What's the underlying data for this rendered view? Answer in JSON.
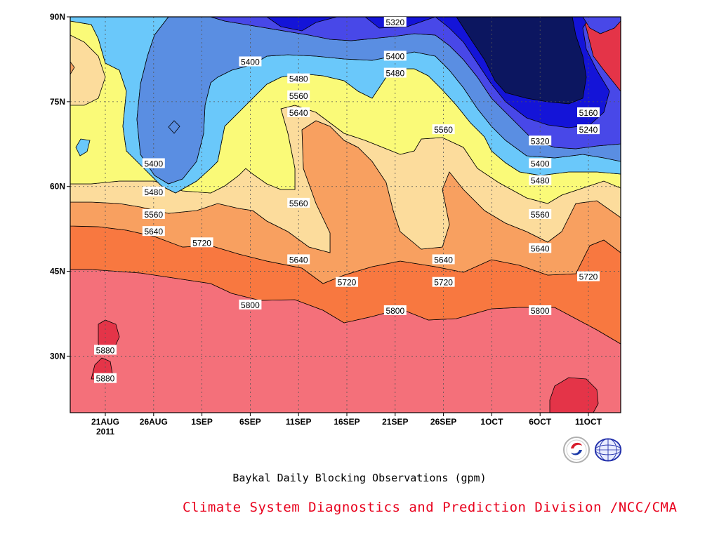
{
  "chart_data": {
    "type": "contour",
    "title": "Baykal Daily Blocking Observations (gpm)",
    "x_ticks": [
      "21AUG",
      "26AUG",
      "1SEP",
      "6SEP",
      "11SEP",
      "16SEP",
      "21SEP",
      "26SEP",
      "1OCT",
      "6OCT",
      "11OCT"
    ],
    "x_year": "2011",
    "y_ticks": [
      "30N",
      "45N",
      "60N",
      "75N",
      "90N"
    ],
    "y_tick_values": [
      30,
      45,
      60,
      75,
      90
    ],
    "ylim": [
      20,
      90
    ],
    "grid": true,
    "levels": [
      5160,
      5240,
      5320,
      5400,
      5480,
      5560,
      5640,
      5720,
      5800,
      5880
    ],
    "fill_colors": {
      "5160": "#0c1660",
      "5240": "#1414d8",
      "5320": "#4848e8",
      "5400": "#5a8ee2",
      "5480": "#6ac8fa",
      "5560": "#fafa78",
      "5640": "#fcdc9c",
      "5720": "#f8a060",
      "5800": "#f87840",
      "5880": "#f4707a",
      "above": "#e43448"
    },
    "contour_labels": [
      {
        "value": "5320",
        "date": "21SEP",
        "lat": 89
      },
      {
        "value": "5400",
        "date": "6SEP",
        "lat": 82
      },
      {
        "value": "5400",
        "date": "21SEP",
        "lat": 83
      },
      {
        "value": "5480",
        "date": "11SEP",
        "lat": 79
      },
      {
        "value": "5480",
        "date": "21SEP",
        "lat": 80
      },
      {
        "value": "5560",
        "date": "11SEP",
        "lat": 76
      },
      {
        "value": "5640",
        "date": "11SEP",
        "lat": 73
      },
      {
        "value": "5560",
        "date": "26SEP",
        "lat": 70
      },
      {
        "value": "5160",
        "date": "11OCT",
        "lat": 73
      },
      {
        "value": "5240",
        "date": "11OCT",
        "lat": 70
      },
      {
        "value": "5320",
        "date": "6OCT",
        "lat": 68
      },
      {
        "value": "5400",
        "date": "26AUG",
        "lat": 64
      },
      {
        "value": "5400",
        "date": "6OCT",
        "lat": 64
      },
      {
        "value": "5480",
        "date": "26AUG",
        "lat": 59
      },
      {
        "value": "5480",
        "date": "6OCT",
        "lat": 61
      },
      {
        "value": "5560",
        "date": "11SEP",
        "lat": 57
      },
      {
        "value": "5560",
        "date": "26AUG",
        "lat": 55
      },
      {
        "value": "5560",
        "date": "6OCT",
        "lat": 55
      },
      {
        "value": "5640",
        "date": "26AUG",
        "lat": 52
      },
      {
        "value": "5640",
        "date": "6OCT",
        "lat": 49
      },
      {
        "value": "5720",
        "date": "1SEP",
        "lat": 50
      },
      {
        "value": "5640",
        "date": "11SEP",
        "lat": 47
      },
      {
        "value": "5640",
        "date": "26SEP",
        "lat": 47
      },
      {
        "value": "5720",
        "date": "16SEP",
        "lat": 43
      },
      {
        "value": "5720",
        "date": "26SEP",
        "lat": 43
      },
      {
        "value": "5720",
        "date": "11OCT",
        "lat": 44
      },
      {
        "value": "5800",
        "date": "6SEP",
        "lat": 39
      },
      {
        "value": "5800",
        "date": "21SEP",
        "lat": 38
      },
      {
        "value": "5800",
        "date": "6OCT",
        "lat": 38
      },
      {
        "value": "5880",
        "date": "21AUG",
        "lat": 31
      },
      {
        "value": "5880",
        "date": "21AUG",
        "lat": 26
      }
    ]
  },
  "footer": {
    "credit": "Climate System Diagnostics and Prediction Division /NCC/CMA",
    "logos": [
      "bcc-logo",
      "ncc-logo"
    ]
  }
}
